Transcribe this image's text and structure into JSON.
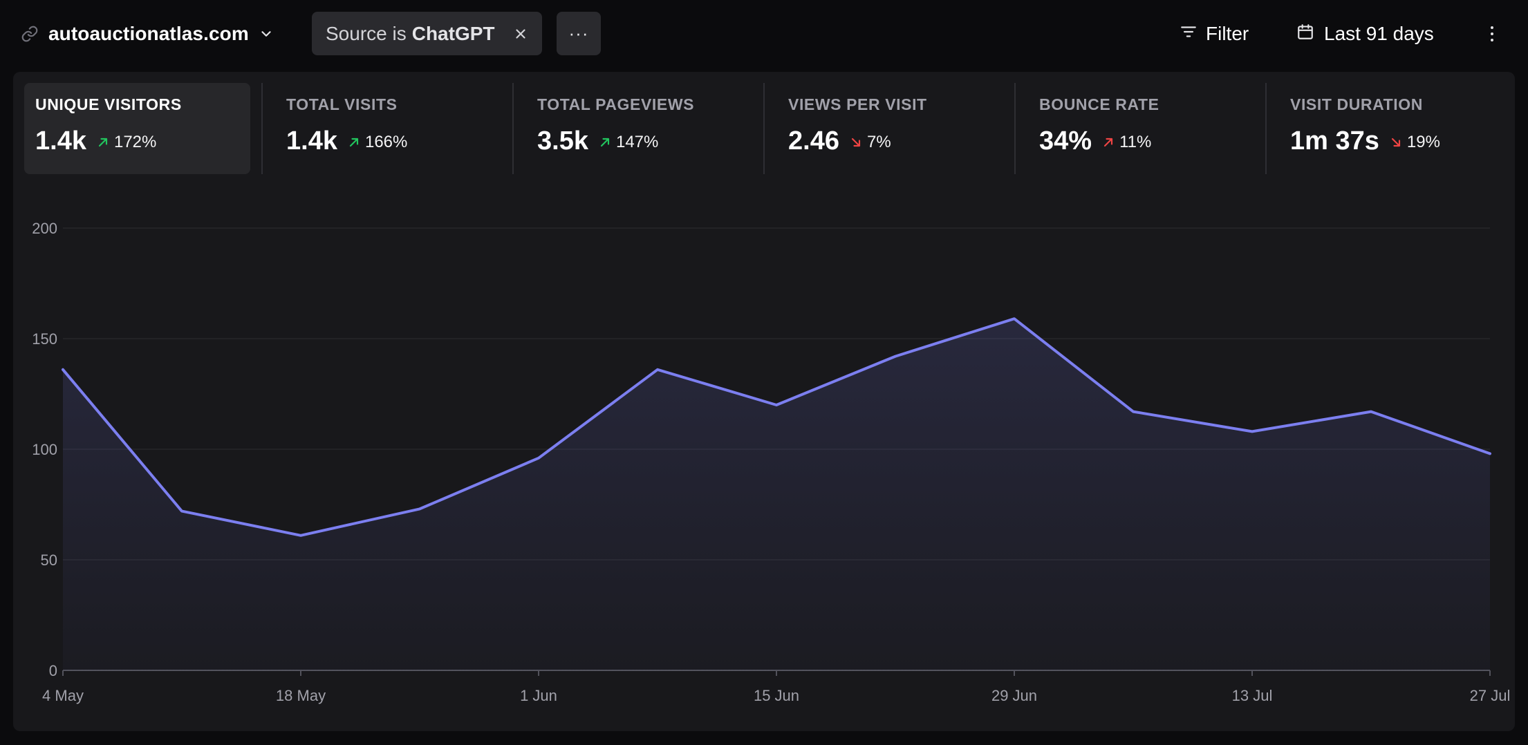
{
  "site": {
    "domain": "autoauctionatlas.com"
  },
  "filter_chip": {
    "prefix": "Source is",
    "value": "ChatGPT"
  },
  "toolbar": {
    "more_label": "···",
    "filter_label": "Filter",
    "period_label": "Last 91 days"
  },
  "metrics": [
    {
      "label": "UNIQUE VISITORS",
      "value": "1.4k",
      "change": "172%",
      "direction": "up",
      "sentiment": "good",
      "active": true
    },
    {
      "label": "TOTAL VISITS",
      "value": "1.4k",
      "change": "166%",
      "direction": "up",
      "sentiment": "good",
      "active": false
    },
    {
      "label": "TOTAL PAGEVIEWS",
      "value": "3.5k",
      "change": "147%",
      "direction": "up",
      "sentiment": "good",
      "active": false
    },
    {
      "label": "VIEWS PER VISIT",
      "value": "2.46",
      "change": "7%",
      "direction": "down",
      "sentiment": "bad",
      "active": false
    },
    {
      "label": "BOUNCE RATE",
      "value": "34%",
      "change": "11%",
      "direction": "up",
      "sentiment": "bad",
      "active": false
    },
    {
      "label": "VISIT DURATION",
      "value": "1m 37s",
      "change": "19%",
      "direction": "down",
      "sentiment": "bad",
      "active": false
    }
  ],
  "colors": {
    "good": "#22c55e",
    "bad": "#ef4444",
    "line": "#7c7ff0",
    "grid": "#27272a",
    "axis_text": "#a1a1aa"
  },
  "chart_data": {
    "type": "area",
    "x": [
      "4 May",
      "11 May",
      "18 May",
      "25 May",
      "1 Jun",
      "8 Jun",
      "15 Jun",
      "22 Jun",
      "29 Jun",
      "6 Jul",
      "13 Jul",
      "20 Jul",
      "27 Jul"
    ],
    "x_tick_labels": [
      "4 May",
      "18 May",
      "1 Jun",
      "15 Jun",
      "29 Jun",
      "13 Jul",
      "27 Jul"
    ],
    "series": [
      {
        "values": [
          136,
          72,
          61,
          73,
          96,
          136,
          120,
          142,
          159,
          117,
          108,
          117,
          98
        ]
      }
    ],
    "yticks": [
      0,
      50,
      100,
      150,
      200
    ],
    "ylim": [
      0,
      200
    ],
    "grid": true
  }
}
